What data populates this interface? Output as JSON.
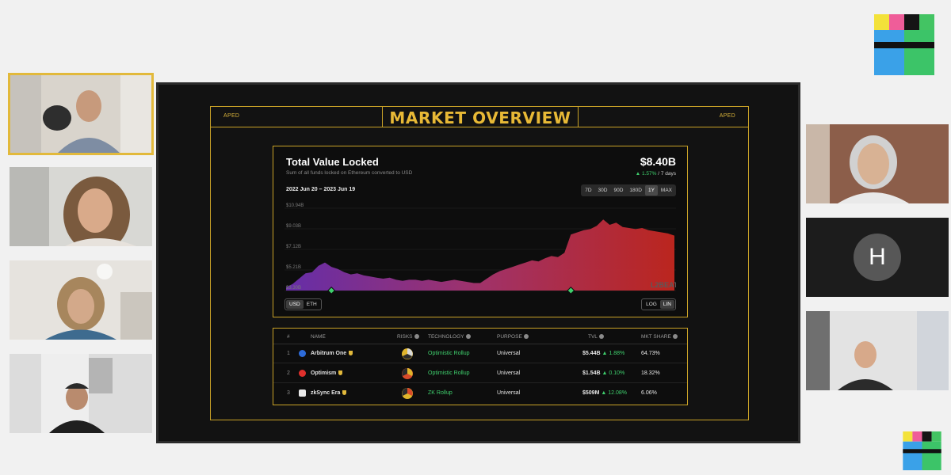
{
  "colors": {
    "accent_gold": "#c9a227",
    "slide_bg": "#121212",
    "positive": "#3fcf6d",
    "chart_start": "#6a2fb0",
    "chart_end": "#c4271f"
  },
  "participants": {
    "right_avatar_initial": "H"
  },
  "slide": {
    "corner_left": "APED",
    "corner_right": "APED",
    "title": "MARKET OVERVIEW"
  },
  "tvl": {
    "title": "Total Value Locked",
    "subtitle": "Sum of all funds locked on Ethereum converted to USD",
    "value": "$8.40B",
    "change_pct": "▲ 1.57%",
    "change_period": "/ 7 days",
    "date_range": "2022 Jun 20 – 2023 Jun 19",
    "periods": [
      "7D",
      "30D",
      "90D",
      "180D",
      "1Y",
      "MAX"
    ],
    "currency_toggle": [
      "USD",
      "ETH"
    ],
    "scale_toggle": [
      "LOG",
      "LIN"
    ],
    "watermark": "L2BEAT"
  },
  "chart_data": {
    "type": "area",
    "ylabel": "",
    "y_tick_labels": [
      "$10.94B",
      "$9.03B",
      "$7.12B",
      "$5.21B",
      "$3.30B"
    ],
    "ylim": [
      3.3,
      10.94
    ],
    "x_range": [
      "2022-06-20",
      "2023-06-19"
    ],
    "series": [
      {
        "values": [
          3.6,
          3.9,
          4.4,
          4.9,
          5.0,
          5.6,
          5.9,
          5.5,
          5.3,
          5.0,
          4.8,
          4.9,
          4.7,
          4.6,
          4.5,
          4.4,
          4.5,
          4.3,
          4.2,
          4.3,
          4.3,
          4.2,
          4.3,
          4.2,
          4.1,
          4.2,
          4.3,
          4.2,
          4.1,
          4.0,
          4.0,
          4.4,
          4.8,
          5.1,
          5.3,
          5.5,
          5.7,
          5.9,
          6.1,
          6.0,
          6.3,
          6.5,
          6.4,
          6.8,
          8.5,
          8.7,
          8.9,
          9.0,
          9.3,
          9.9,
          9.4,
          9.6,
          9.2,
          9.1,
          9.0,
          9.1,
          8.9,
          8.8,
          8.7,
          8.6,
          8.4
        ]
      }
    ],
    "markers": [
      {
        "x_index": 7
      },
      {
        "x_index": 44
      }
    ]
  },
  "table": {
    "headers": {
      "rank": "#",
      "name": "NAME",
      "risks": "RISKS",
      "technology": "TECHNOLOGY",
      "purpose": "PURPOSE",
      "tvl": "TVL",
      "share": "MKT SHARE"
    },
    "rows": [
      {
        "rank": "1",
        "name": "Arbitrum One",
        "technology": "Optimistic Rollup",
        "purpose": "Universal",
        "tvl": "$5.44B",
        "tvl_change": "▲ 1.88%",
        "share": "64.73%",
        "icon_color": "#2d6bd8"
      },
      {
        "rank": "2",
        "name": "Optimism",
        "technology": "Optimistic Rollup",
        "purpose": "Universal",
        "tvl": "$1.54B",
        "tvl_change": "▲ 0.10%",
        "share": "18.32%",
        "icon_color": "#e0302c"
      },
      {
        "rank": "3",
        "name": "zkSync Era",
        "technology": "ZK Rollup",
        "purpose": "Universal",
        "tvl": "$509M",
        "tvl_change": "▲ 12.08%",
        "share": "6.06%",
        "icon_color": "#e8e8e8"
      }
    ]
  }
}
